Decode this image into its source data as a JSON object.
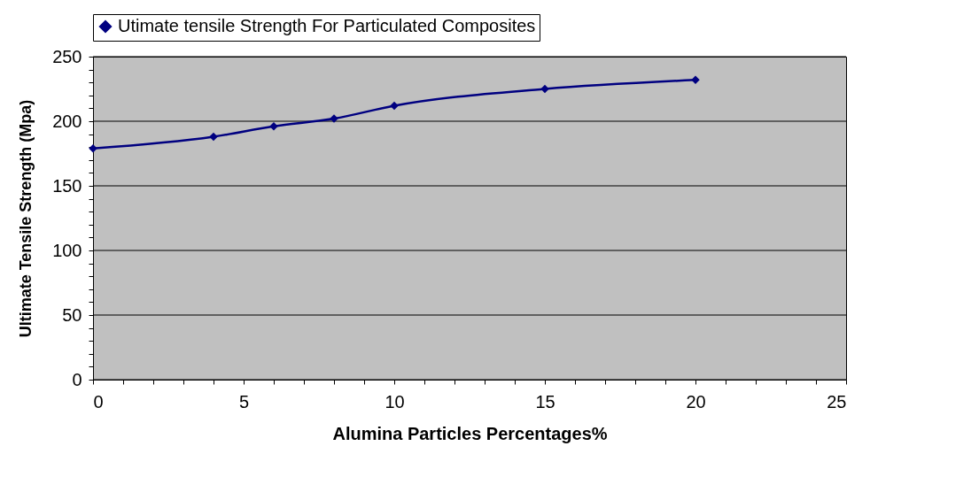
{
  "chart_data": {
    "type": "line",
    "xlabel": "Alumina Particles Percentages%",
    "ylabel": "Ultimate Tensile Strength (Mpa)",
    "x": [
      0,
      4,
      6,
      8,
      10,
      15,
      20
    ],
    "series": [
      {
        "name": "Utimate tensile Strength For Particulated Composites",
        "color": "#000080",
        "values": [
          179,
          188,
          196,
          202,
          212,
          225,
          232
        ]
      }
    ],
    "xlim": [
      0,
      25
    ],
    "xticks": [
      0,
      {
        "value": 1,
        "label": null
      },
      {
        "value": 2,
        "label": null
      },
      {
        "value": 3,
        "label": null
      },
      {
        "value": 4,
        "label": null
      },
      5,
      {
        "value": 6,
        "label": null
      },
      {
        "value": 7,
        "label": null
      },
      {
        "value": 8,
        "label": null
      },
      {
        "value": 9,
        "label": null
      },
      10,
      {
        "value": 11,
        "label": null
      },
      {
        "value": 12,
        "label": null
      },
      {
        "value": 13,
        "label": null
      },
      {
        "value": 14,
        "label": null
      },
      15,
      {
        "value": 16,
        "label": null
      },
      {
        "value": 17,
        "label": null
      },
      {
        "value": 18,
        "label": null
      },
      {
        "value": 19,
        "label": null
      },
      20,
      {
        "value": 21,
        "label": null
      },
      {
        "value": 22,
        "label": null
      },
      {
        "value": 23,
        "label": null
      },
      {
        "value": 24,
        "label": null
      },
      25
    ],
    "ylim": [
      0,
      250
    ],
    "yticks": [
      0,
      {
        "value": 10,
        "label": null
      },
      {
        "value": 20,
        "label": null
      },
      {
        "value": 30,
        "label": null
      },
      {
        "value": 40,
        "label": null
      },
      50,
      {
        "value": 60,
        "label": null
      },
      {
        "value": 70,
        "label": null
      },
      {
        "value": 80,
        "label": null
      },
      {
        "value": 90,
        "label": null
      },
      100,
      {
        "value": 110,
        "label": null
      },
      {
        "value": 120,
        "label": null
      },
      {
        "value": 130,
        "label": null
      },
      {
        "value": 140,
        "label": null
      },
      150,
      {
        "value": 160,
        "label": null
      },
      {
        "value": 170,
        "label": null
      },
      {
        "value": 180,
        "label": null
      },
      {
        "value": 190,
        "label": null
      },
      200,
      {
        "value": 210,
        "label": null
      },
      {
        "value": 220,
        "label": null
      },
      {
        "value": 230,
        "label": null
      },
      {
        "value": 240,
        "label": null
      },
      250
    ],
    "grid": "y",
    "legend": "top",
    "marker": "diamond",
    "line_style": "solid"
  }
}
